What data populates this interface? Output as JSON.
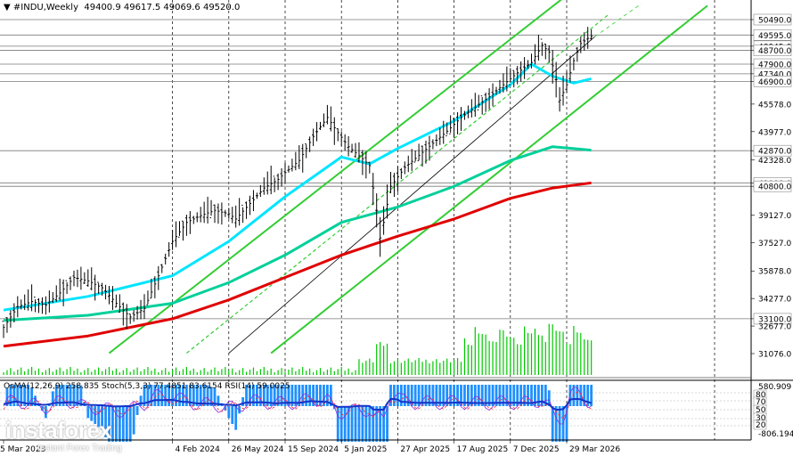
{
  "header": {
    "title": "#INDU,Weekly",
    "ohlc": "49400.9 49617.5 49069.6 49520.0"
  },
  "indicator_header": "OsMA(12,26,9) 258.835  Stoch(5,3,3) 77.4851 83.6154  RSI(14) 59.0025",
  "brand": {
    "name": "instaforex",
    "tagline": "Instant Forex Trading"
  },
  "chart_data": {
    "type": "line",
    "symbol": "#INDU",
    "timeframe": "Weekly",
    "y_ticks": [
      50490,
      49595,
      48945,
      48700,
      47900,
      47340,
      46900,
      45578,
      43977,
      42870,
      42328,
      41000,
      40800,
      39127,
      37527,
      35878,
      34277,
      33100,
      32677,
      31076
    ],
    "highlighted_levels": [
      50490,
      49595,
      48945,
      48700,
      47900,
      47340,
      46900,
      42870,
      41000,
      40800,
      33100
    ],
    "x_ticks": [
      "5 Mar 2023",
      "4 Feb 2024",
      "26 May 2024",
      "15 Sep 2024",
      "5 Jan 2025",
      "27 Apr 2025",
      "17 Aug 2025",
      "7 Dec 2025",
      "29 Mar 2026"
    ],
    "x_tick_weeks": [
      0,
      48,
      64,
      80,
      96,
      112,
      128,
      144,
      160
    ],
    "price_series": [
      [
        0,
        32600
      ],
      [
        4,
        33800
      ],
      [
        8,
        34100
      ],
      [
        12,
        33900
      ],
      [
        16,
        34600
      ],
      [
        20,
        35500
      ],
      [
        24,
        35300
      ],
      [
        28,
        34900
      ],
      [
        32,
        34000
      ],
      [
        36,
        33200
      ],
      [
        40,
        33700
      ],
      [
        44,
        35600
      ],
      [
        46,
        36600
      ],
      [
        48,
        37600
      ],
      [
        52,
        38700
      ],
      [
        56,
        39100
      ],
      [
        60,
        39400
      ],
      [
        64,
        39200
      ],
      [
        66,
        38900
      ],
      [
        70,
        39800
      ],
      [
        74,
        40700
      ],
      [
        78,
        41200
      ],
      [
        80,
        41600
      ],
      [
        84,
        42300
      ],
      [
        88,
        43700
      ],
      [
        92,
        44800
      ],
      [
        94,
        44200
      ],
      [
        98,
        43100
      ],
      [
        102,
        42400
      ],
      [
        104,
        42000
      ],
      [
        106,
        39400
      ],
      [
        107,
        37800
      ],
      [
        108,
        38700
      ],
      [
        110,
        40800
      ],
      [
        114,
        41900
      ],
      [
        118,
        42600
      ],
      [
        122,
        43300
      ],
      [
        126,
        44000
      ],
      [
        130,
        44800
      ],
      [
        134,
        45400
      ],
      [
        138,
        46000
      ],
      [
        142,
        46700
      ],
      [
        146,
        47400
      ],
      [
        150,
        48000
      ],
      [
        153,
        49000
      ],
      [
        155,
        48600
      ],
      [
        157,
        47000
      ],
      [
        158,
        45800
      ],
      [
        160,
        46700
      ],
      [
        162,
        48100
      ],
      [
        164,
        49100
      ],
      [
        166,
        49400
      ],
      [
        167,
        49520
      ]
    ],
    "ma_fast": [
      [
        0,
        33600
      ],
      [
        24,
        34400
      ],
      [
        48,
        35600
      ],
      [
        64,
        37600
      ],
      [
        80,
        40200
      ],
      [
        96,
        42500
      ],
      [
        104,
        42100
      ],
      [
        112,
        43000
      ],
      [
        128,
        44600
      ],
      [
        144,
        46700
      ],
      [
        150,
        47900
      ],
      [
        156,
        47200
      ],
      [
        162,
        46800
      ],
      [
        167,
        47050
      ]
    ],
    "ma_mid": [
      [
        0,
        33000
      ],
      [
        24,
        33300
      ],
      [
        48,
        34000
      ],
      [
        64,
        35200
      ],
      [
        80,
        36800
      ],
      [
        96,
        38700
      ],
      [
        112,
        39600
      ],
      [
        128,
        40800
      ],
      [
        144,
        42300
      ],
      [
        156,
        43100
      ],
      [
        167,
        42900
      ]
    ],
    "ma_slow": [
      [
        0,
        31500
      ],
      [
        24,
        32100
      ],
      [
        48,
        33100
      ],
      [
        64,
        34200
      ],
      [
        80,
        35500
      ],
      [
        96,
        36800
      ],
      [
        112,
        37900
      ],
      [
        128,
        38900
      ],
      [
        144,
        40100
      ],
      [
        156,
        40700
      ],
      [
        167,
        41000
      ]
    ],
    "channel_upper": [
      [
        30,
        31100
      ],
      [
        160,
        51900
      ]
    ],
    "channel_lower": [
      [
        76,
        31100
      ],
      [
        200,
        51300
      ]
    ],
    "channel_mid": [
      [
        52,
        31100
      ],
      [
        172,
        50800
      ]
    ],
    "trend_black": [
      [
        64,
        31100
      ],
      [
        168,
        49500
      ]
    ],
    "indicator_scale": {
      "max": "580.909",
      "min": "-806.194",
      "levels": [
        "80",
        "70",
        "50",
        "30",
        "20"
      ]
    }
  }
}
